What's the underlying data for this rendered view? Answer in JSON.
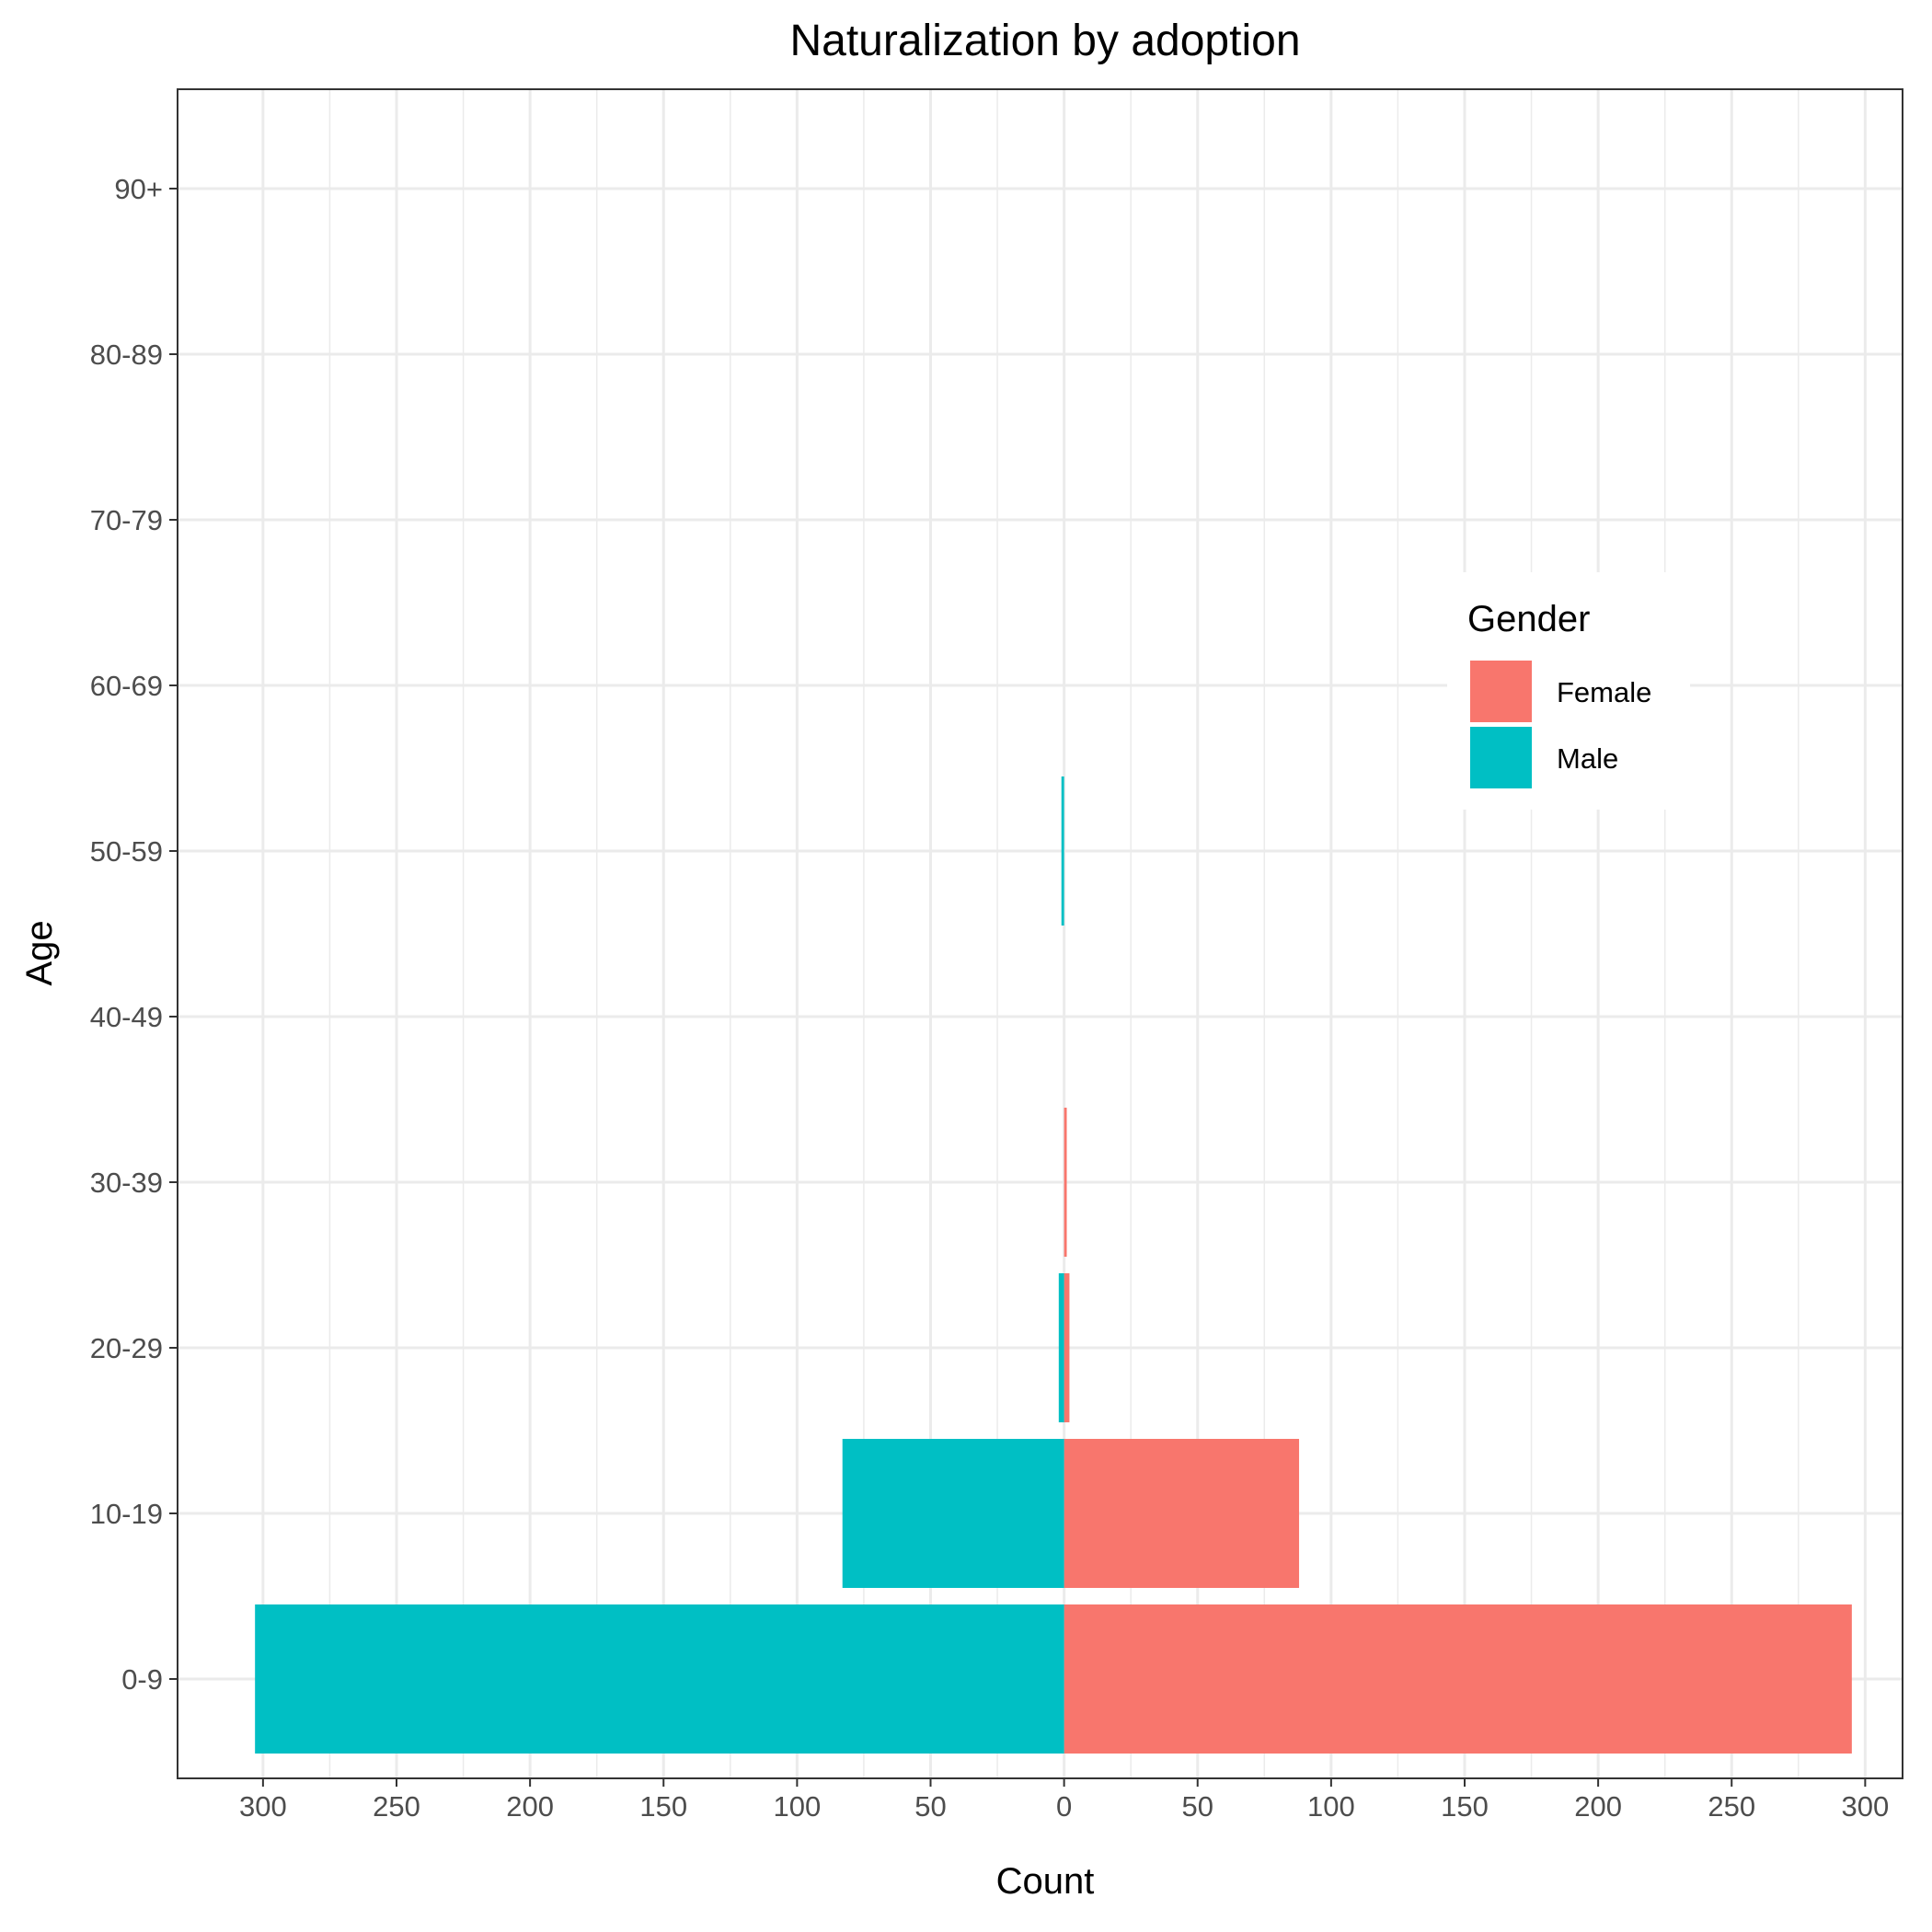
{
  "chart_data": {
    "type": "bar",
    "orientation": "horizontal",
    "layout": "population-pyramid",
    "title": "Naturalization by adoption",
    "xlabel": "Count",
    "ylabel": "Age",
    "categories": [
      "0-9",
      "10-19",
      "20-29",
      "30-39",
      "40-49",
      "50-59",
      "60-69",
      "70-79",
      "80-89",
      "90+"
    ],
    "series": [
      {
        "name": "Female",
        "side": "right",
        "color": "#F8766D",
        "values": [
          295,
          88,
          2,
          1,
          0,
          0,
          0,
          0,
          0,
          0
        ]
      },
      {
        "name": "Male",
        "side": "left",
        "color": "#00BFC4",
        "values": [
          303,
          83,
          2,
          0,
          0,
          1,
          0,
          0,
          0,
          0
        ]
      }
    ],
    "xlim": [
      -332,
      314
    ],
    "x_ticks": [
      -300,
      -250,
      -200,
      -150,
      -100,
      -50,
      0,
      50,
      100,
      150,
      200,
      250,
      300
    ],
    "x_tick_labels": [
      "300",
      "250",
      "200",
      "150",
      "100",
      "50",
      "0",
      "50",
      "100",
      "150",
      "200",
      "250",
      "300"
    ],
    "grid": true,
    "legend": {
      "title": "Gender",
      "position": "top-right-inside",
      "entries": [
        "Female",
        "Male"
      ]
    }
  }
}
